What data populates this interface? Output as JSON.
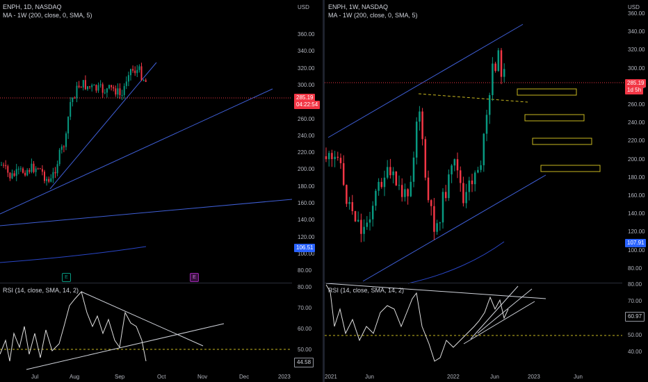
{
  "left": {
    "symbol": "ENPH, 1D, NASDAQ",
    "ma_legend": "MA - 1W (200, close, 0, SMA, 5)",
    "currency": "USD",
    "price_axis": [
      "360.00",
      "340.00",
      "320.00",
      "300.00",
      "280.00",
      "260.00",
      "240.00",
      "220.00",
      "200.00",
      "180.00",
      "160.00",
      "140.00",
      "120.00",
      "100.00",
      "80.00"
    ],
    "price_badge": "285.19",
    "countdown_badge": "04:22:54",
    "ma_badge": "106.51",
    "earnings_label": "E",
    "rsi_legend": "RSI (14, close, SMA, 14, 2)",
    "rsi_axis": [
      "80.00",
      "70.00",
      "60.00",
      "50.00"
    ],
    "rsi_badge": "44.58",
    "time_axis": [
      "Jul",
      "Aug",
      "Sep",
      "Oct",
      "Nov",
      "Dec",
      "2023"
    ],
    "colors": {
      "up": "#089981",
      "down": "#f23645",
      "trend": "#3f5fd7",
      "ma": "#2a47c9",
      "earn_green": "#089981",
      "earn_purple": "#9c27b0"
    }
  },
  "right": {
    "symbol": "ENPH, 1W, NASDAQ",
    "ma_legend": "MA - 1W (200, close, 0, SMA, 5)",
    "currency": "USD",
    "price_axis": [
      "360.00",
      "340.00",
      "320.00",
      "300.00",
      "280.00",
      "260.00",
      "240.00",
      "220.00",
      "200.00",
      "180.00",
      "160.00",
      "140.00",
      "120.00",
      "100.00",
      "80.00"
    ],
    "price_badge": "285.19",
    "countdown_badge": "1d 5h",
    "ma_badge": "107.91",
    "rsi_legend": "RSI (14, close, SMA, 14, 2)",
    "rsi_axis": [
      "80.00",
      "70.00",
      "60.00",
      "50.00",
      "40.00"
    ],
    "rsi_badge": "60.97",
    "time_axis": [
      "2021",
      "Jun",
      "2022",
      "Jun",
      "2023",
      "Jun"
    ],
    "colors": {
      "zone": "#c9b820",
      "channel": "#3f5fd7"
    }
  }
}
